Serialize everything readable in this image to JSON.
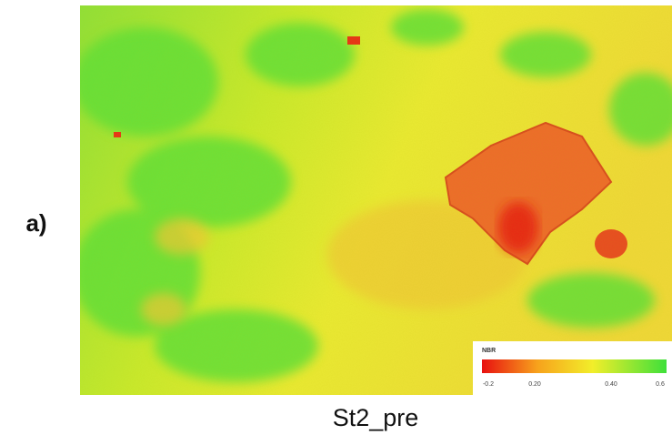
{
  "panel_label": "a)",
  "caption": "St2_pre",
  "legend": {
    "title": "NBR",
    "ticks": [
      "-0.2",
      "0.20",
      "0.40",
      "0.6"
    ]
  }
}
